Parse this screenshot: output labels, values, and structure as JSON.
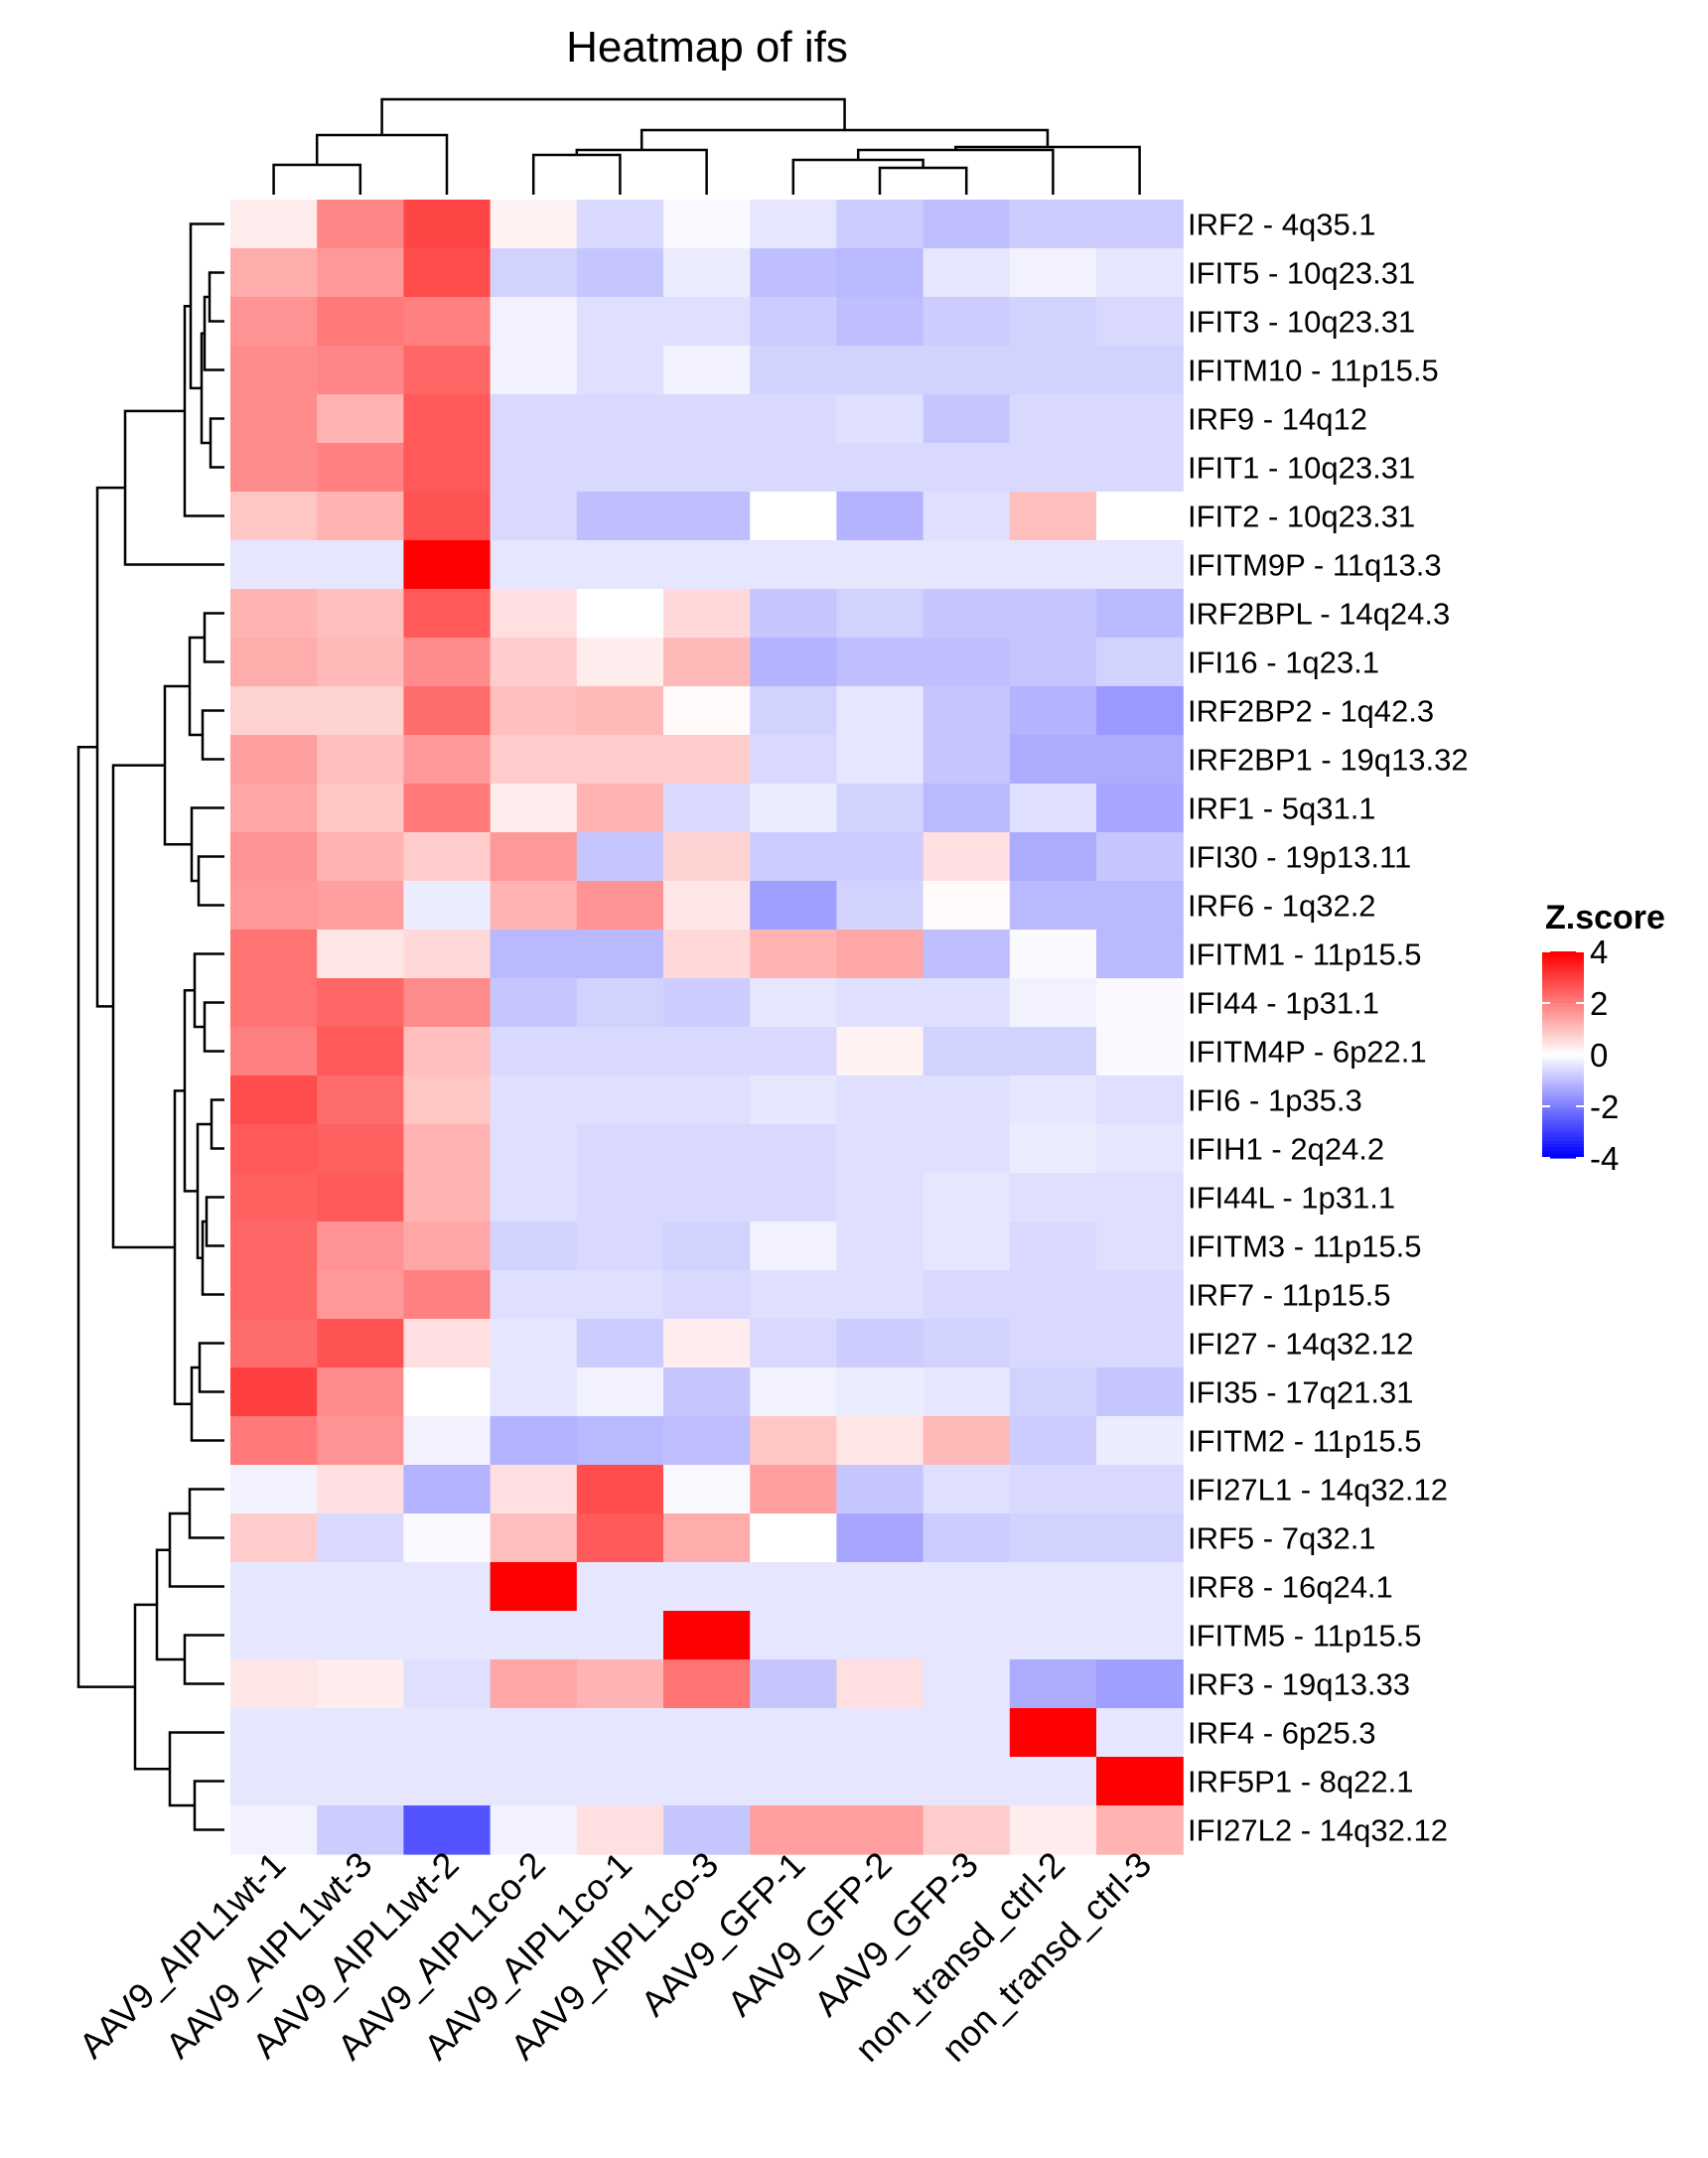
{
  "chart_data": {
    "type": "heatmap",
    "title": "Heatmap of ifs",
    "columns": [
      "AAV9_AIPL1wt-1",
      "AAV9_AIPL1wt-3",
      "AAV9_AIPL1wt-2",
      "AAV9_AIPL1co-2",
      "AAV9_AIPL1co-1",
      "AAV9_AIPL1co-3",
      "AAV9_GFP-1",
      "AAV9_GFP-2",
      "AAV9_GFP-3",
      "non_transd_ctrl-2",
      "non_transd_ctrl-3"
    ],
    "rows": [
      "IRF2 - 4q35.1",
      "IFIT5 - 10q23.31",
      "IFIT3 - 10q23.31",
      "IFITM10 - 11p15.5",
      "IRF9 - 14q12",
      "IFIT1 - 10q23.31",
      "IFIT2 - 10q23.31",
      "IFITM9P - 11q13.3",
      "IRF2BPL - 14q24.3",
      "IFI16 - 1q23.1",
      "IRF2BP2 - 1q42.3",
      "IRF2BP1 - 19q13.32",
      "IRF1 - 5q31.1",
      "IFI30 - 19p13.11",
      "IRF6 - 1q32.2",
      "IFITM1 - 11p15.5",
      "IFI44 - 1p31.1",
      "IFITM4P - 6p22.1",
      "IFI6 - 1p35.3",
      "IFIH1 - 2q24.2",
      "IFI44L - 1p31.1",
      "IFITM3 - 11p15.5",
      "IRF7 - 11p15.5",
      "IFI27 - 14q32.12",
      "IFI35 - 17q21.31",
      "IFITM2 - 11p15.5",
      "IFI27L1 - 14q32.12",
      "IRF5 - 7q32.1",
      "IRF8 - 16q24.1",
      "IFITM5 - 11p15.5",
      "IRF3 - 19q13.33",
      "IRF4 - 6p25.3",
      "IRF5P1 - 8q22.1",
      "IFI27L2 - 14q32.12"
    ],
    "values": [
      [
        0.3,
        1.9,
        2.9,
        0.2,
        -0.6,
        -0.1,
        -0.4,
        -0.8,
        -1.0,
        -0.8,
        -0.8
      ],
      [
        1.3,
        1.6,
        2.8,
        -0.7,
        -0.9,
        -0.3,
        -1.0,
        -1.1,
        -0.4,
        -0.2,
        -0.4
      ],
      [
        1.7,
        2.1,
        2.0,
        -0.2,
        -0.5,
        -0.5,
        -0.8,
        -1.0,
        -0.8,
        -0.7,
        -0.6
      ],
      [
        1.8,
        1.9,
        2.4,
        -0.2,
        -0.5,
        -0.2,
        -0.7,
        -0.7,
        -0.7,
        -0.7,
        -0.7
      ],
      [
        1.8,
        1.2,
        2.6,
        -0.6,
        -0.6,
        -0.6,
        -0.6,
        -0.5,
        -0.9,
        -0.6,
        -0.6
      ],
      [
        1.8,
        2.0,
        2.6,
        -0.6,
        -0.6,
        -0.6,
        -0.6,
        -0.6,
        -0.6,
        -0.6,
        -0.6
      ],
      [
        0.9,
        1.2,
        2.7,
        -0.6,
        -1.0,
        -1.0,
        0.0,
        -1.2,
        -0.5,
        1.0,
        0.0
      ],
      [
        -0.4,
        -0.4,
        4.2,
        -0.4,
        -0.4,
        -0.4,
        -0.4,
        -0.4,
        -0.4,
        -0.4,
        -0.4
      ],
      [
        1.2,
        1.0,
        2.6,
        0.5,
        0.0,
        0.6,
        -0.9,
        -0.7,
        -0.9,
        -0.9,
        -1.1
      ],
      [
        1.3,
        1.1,
        1.8,
        0.8,
        0.3,
        1.1,
        -1.2,
        -1.0,
        -1.0,
        -0.9,
        -0.7
      ],
      [
        0.7,
        0.7,
        2.3,
        1.0,
        1.1,
        0.1,
        -0.7,
        -0.4,
        -0.9,
        -1.2,
        -1.6
      ],
      [
        1.5,
        1.0,
        1.6,
        0.8,
        0.8,
        0.8,
        -0.6,
        -0.4,
        -0.9,
        -1.3,
        -1.3
      ],
      [
        1.4,
        0.9,
        2.1,
        0.3,
        1.2,
        -0.6,
        -0.3,
        -0.7,
        -1.1,
        -0.5,
        -1.4
      ],
      [
        1.7,
        1.2,
        0.8,
        1.6,
        -0.9,
        0.7,
        -0.8,
        -0.8,
        0.5,
        -1.3,
        -0.9
      ],
      [
        1.6,
        1.5,
        -0.3,
        1.2,
        1.7,
        0.4,
        -1.5,
        -0.7,
        0.1,
        -1.1,
        -1.1
      ],
      [
        2.2,
        0.4,
        0.6,
        -1.1,
        -1.1,
        0.6,
        1.2,
        1.4,
        -1.0,
        -0.1,
        -1.1
      ],
      [
        2.2,
        2.4,
        1.8,
        -0.9,
        -0.7,
        -0.8,
        -0.4,
        -0.5,
        -0.5,
        -0.2,
        -0.1
      ],
      [
        2.0,
        2.6,
        1.0,
        -0.6,
        -0.6,
        -0.6,
        -0.6,
        0.2,
        -0.7,
        -0.7,
        -0.1
      ],
      [
        2.8,
        2.3,
        0.9,
        -0.5,
        -0.5,
        -0.5,
        -0.4,
        -0.5,
        -0.5,
        -0.4,
        -0.5
      ],
      [
        2.6,
        2.5,
        1.2,
        -0.5,
        -0.6,
        -0.6,
        -0.6,
        -0.5,
        -0.5,
        -0.3,
        -0.4
      ],
      [
        2.5,
        2.6,
        1.2,
        -0.5,
        -0.6,
        -0.6,
        -0.6,
        -0.5,
        -0.4,
        -0.5,
        -0.5
      ],
      [
        2.4,
        1.7,
        1.4,
        -0.7,
        -0.6,
        -0.7,
        -0.2,
        -0.5,
        -0.4,
        -0.6,
        -0.5
      ],
      [
        2.4,
        1.6,
        2.0,
        -0.5,
        -0.5,
        -0.6,
        -0.5,
        -0.5,
        -0.6,
        -0.6,
        -0.6
      ],
      [
        2.3,
        2.7,
        0.5,
        -0.4,
        -0.8,
        0.3,
        -0.6,
        -0.8,
        -0.7,
        -0.6,
        -0.6
      ],
      [
        3.0,
        1.8,
        0.0,
        -0.4,
        -0.2,
        -0.9,
        -0.2,
        -0.3,
        -0.4,
        -0.7,
        -0.9
      ],
      [
        2.1,
        1.7,
        -0.2,
        -1.2,
        -1.1,
        -1.0,
        0.9,
        0.4,
        1.1,
        -0.8,
        -0.3
      ],
      [
        -0.2,
        0.5,
        -1.2,
        0.5,
        2.8,
        -0.1,
        1.5,
        -0.9,
        -0.5,
        -0.6,
        -0.6
      ],
      [
        0.8,
        -0.6,
        -0.1,
        1.0,
        2.6,
        1.3,
        0.0,
        -1.4,
        -0.8,
        -0.7,
        -0.7
      ],
      [
        -0.4,
        -0.4,
        -0.4,
        4.2,
        -0.4,
        -0.4,
        -0.4,
        -0.4,
        -0.4,
        -0.4,
        -0.4
      ],
      [
        -0.4,
        -0.4,
        -0.4,
        -0.4,
        -0.4,
        4.2,
        -0.4,
        -0.4,
        -0.4,
        -0.4,
        -0.4
      ],
      [
        0.4,
        0.3,
        -0.5,
        1.4,
        1.2,
        2.2,
        -0.9,
        0.5,
        -0.4,
        -1.3,
        -1.5
      ],
      [
        -0.4,
        -0.4,
        -0.4,
        -0.4,
        -0.4,
        -0.4,
        -0.4,
        -0.4,
        -0.4,
        4.2,
        -0.4
      ],
      [
        -0.4,
        -0.4,
        -0.4,
        -0.4,
        -0.4,
        -0.4,
        -0.4,
        -0.4,
        -0.4,
        -0.4,
        4.2
      ],
      [
        -0.2,
        -0.8,
        -2.7,
        -0.2,
        0.5,
        -0.9,
        1.5,
        1.5,
        0.8,
        0.3,
        1.2
      ]
    ],
    "color_scale": {
      "low": "#0000ff",
      "mid": "#ffffff",
      "high": "#ff0000",
      "range": [
        -4,
        4
      ]
    },
    "legend": {
      "title": "Z.score",
      "ticks": [
        4,
        2,
        0,
        -2,
        -4
      ],
      "placement": "right"
    },
    "column_dendrogram": true,
    "row_dendrogram": true
  }
}
